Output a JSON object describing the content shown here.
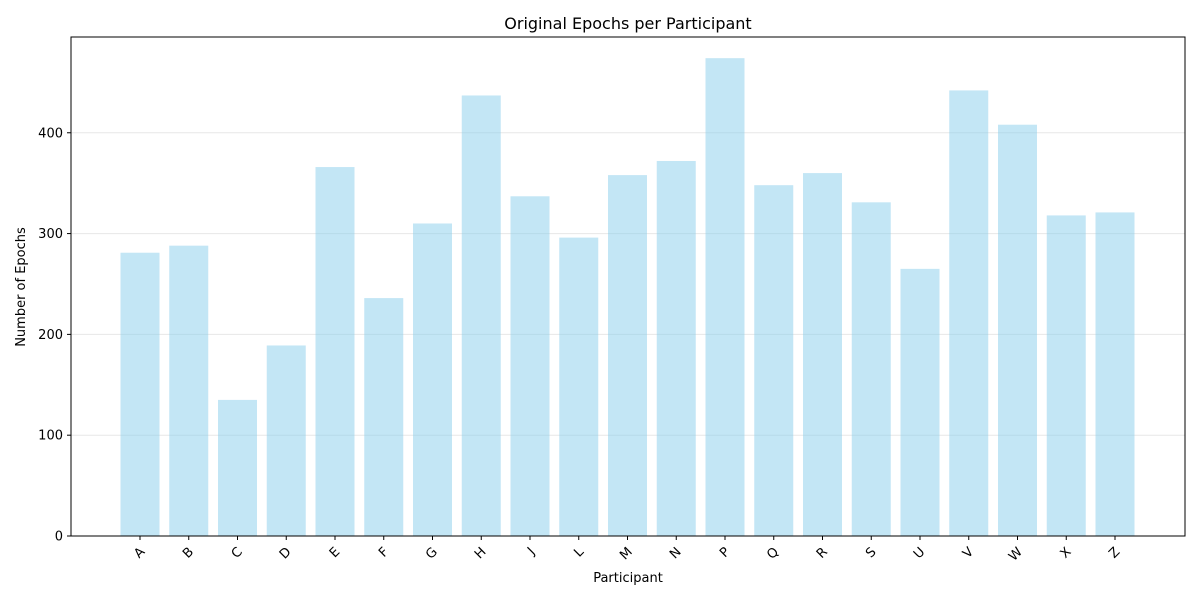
{
  "chart_data": {
    "type": "bar",
    "title": "Original Epochs per Participant",
    "xlabel": "Participant",
    "ylabel": "Number of Epochs",
    "categories": [
      "A",
      "B",
      "C",
      "D",
      "E",
      "F",
      "G",
      "H",
      "J",
      "L",
      "M",
      "N",
      "P",
      "Q",
      "R",
      "S",
      "U",
      "V",
      "W",
      "X",
      "Z"
    ],
    "values": [
      281,
      288,
      135,
      189,
      366,
      236,
      310,
      437,
      337,
      296,
      358,
      372,
      474,
      348,
      360,
      331,
      265,
      442,
      408,
      318,
      321
    ],
    "ylim": [
      0,
      495
    ],
    "yticks": [
      0,
      100,
      200,
      300,
      400
    ],
    "grid": "y",
    "bar_color": "#87ceeb",
    "bar_opacity": 0.5,
    "legend": "none"
  }
}
